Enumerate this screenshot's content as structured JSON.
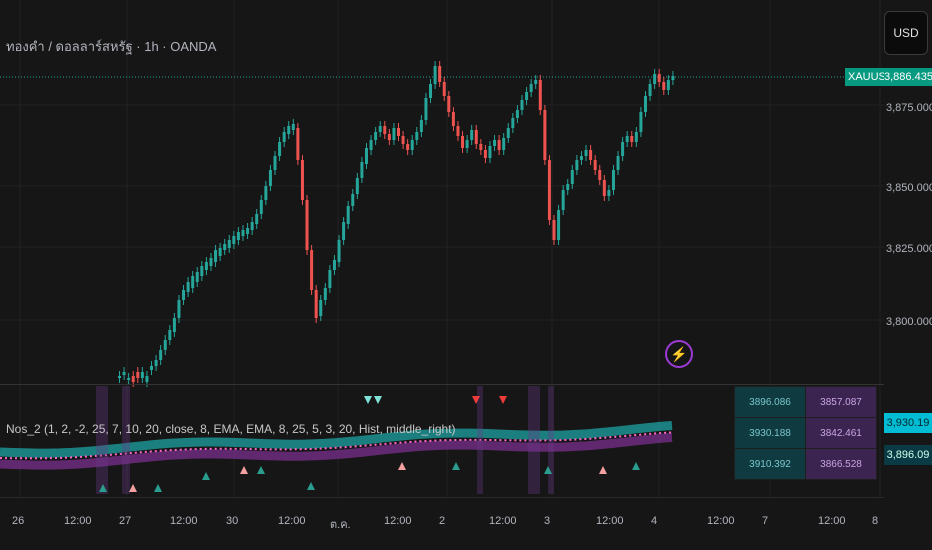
{
  "header": {
    "title": "ทองคำ / ดอลลาร์สหรัฐ · 1h · OANDA",
    "currency_button": "USD"
  },
  "price_axis": {
    "labels": [
      "3,875.000",
      "3,850.000",
      "3,825.000",
      "3,800.000"
    ],
    "last_label": "3,886.435",
    "symbol_tag": "XAUUSD"
  },
  "time_axis": {
    "labels": [
      "26",
      "12:00",
      "27",
      "12:00",
      "30",
      "12:00",
      "ต.ค.",
      "12:00",
      "2",
      "12:00",
      "3",
      "12:00",
      "4",
      "12:00",
      "7",
      "12:00",
      "8"
    ]
  },
  "indicator": {
    "label": "Nos_2 (1, 2, -2, 25, 7, 10, 20, close, 8, EMA, EMA, 8, 25, 5, 3, 20, Hist, middle_right)",
    "table": [
      [
        "3896.086",
        "3857.087"
      ],
      [
        "3930.188",
        "3842.461"
      ],
      [
        "3910.392",
        "3866.528"
      ]
    ],
    "axis_tags": [
      "3,930.19",
      "3,896.09"
    ]
  },
  "colors": {
    "up": "#26a69a",
    "down": "#ef5350",
    "bg": "#161616",
    "band_cyan": "#1fa3a3",
    "band_purple": "#7a2f8c"
  }
}
